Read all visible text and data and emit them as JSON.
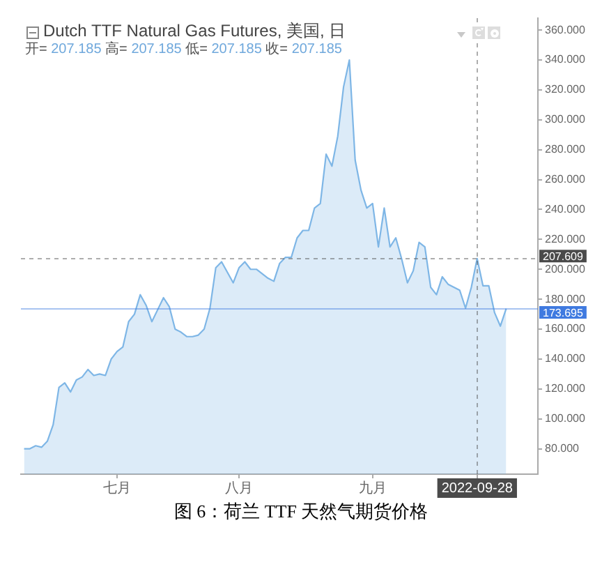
{
  "chart_data": {
    "type": "area",
    "title": "Dutch TTF Natural Gas Futures, 美国, 日",
    "subtitle": "开= 207.185 高= 207.185 低= 207.185 收= 207.185",
    "categories": [
      null,
      null,
      null,
      null,
      null,
      null,
      null,
      null,
      null,
      null,
      null,
      null,
      null,
      null,
      null,
      null,
      "七月",
      null,
      null,
      null,
      null,
      null,
      null,
      null,
      null,
      null,
      null,
      null,
      null,
      null,
      null,
      null,
      null,
      null,
      null,
      null,
      null,
      "八月",
      null,
      null,
      null,
      null,
      null,
      null,
      null,
      null,
      null,
      null,
      null,
      null,
      null,
      null,
      null,
      null,
      null,
      null,
      null,
      null,
      null,
      null,
      "九月",
      null,
      null,
      null,
      null,
      null,
      null,
      null,
      null,
      null,
      null,
      null,
      null,
      null,
      null,
      null,
      null,
      null,
      "2022-09-28",
      null,
      null,
      null,
      null,
      null
    ],
    "values": [
      80,
      80,
      82,
      81,
      85,
      96,
      121,
      124,
      118,
      126,
      128,
      133,
      129,
      130,
      129,
      140,
      145,
      148,
      165,
      170,
      183,
      176,
      165,
      173,
      181,
      175,
      160,
      158,
      155,
      155,
      156,
      160,
      174,
      201,
      205,
      198,
      191,
      201,
      205,
      200,
      200,
      197,
      194,
      192,
      204,
      208,
      208,
      221,
      226,
      226,
      241,
      244,
      277,
      269,
      289,
      322,
      340,
      273,
      253,
      241,
      244,
      215,
      241,
      215,
      221,
      207,
      191,
      199,
      218,
      215,
      188,
      183,
      195,
      190,
      188,
      186,
      174,
      188,
      207.185,
      189,
      189,
      171,
      162,
      173.695
    ],
    "color": "#7eb6e6",
    "ylim": [
      63,
      368
    ],
    "yticks": [
      {
        "value": 80,
        "label": "80.000"
      },
      {
        "value": 100,
        "label": "100.000"
      },
      {
        "value": 120,
        "label": "120.000"
      },
      {
        "value": 140,
        "label": "140.000"
      },
      {
        "value": 160,
        "label": "160.000"
      },
      {
        "value": 180,
        "label": "180.000"
      },
      {
        "value": 200,
        "label": "200.000"
      },
      {
        "value": 220,
        "label": "220.000"
      },
      {
        "value": 240,
        "label": "240.000"
      },
      {
        "value": 260,
        "label": "260.000"
      },
      {
        "value": 280,
        "label": "280.000"
      },
      {
        "value": 300,
        "label": "300.000"
      },
      {
        "value": 320,
        "label": "320.000"
      },
      {
        "value": 340,
        "label": "340.000"
      },
      {
        "value": 360,
        "label": "360.000"
      }
    ],
    "ref_lines": [
      {
        "axis": "x",
        "value": "2022-09-28",
        "color": "#4a4a4a",
        "line_style": "dashed"
      },
      {
        "axis": "y",
        "value": 207.609,
        "label": "207.609",
        "color": "#4a4a4a",
        "line_style": "dashed"
      },
      {
        "axis": "y",
        "value": 173.695,
        "label": "173.695",
        "color": "#3f7ae0",
        "line_style": "solid"
      }
    ],
    "annotations": [
      "图 6：荷兰 TTF 天然气期货价格"
    ]
  }
}
